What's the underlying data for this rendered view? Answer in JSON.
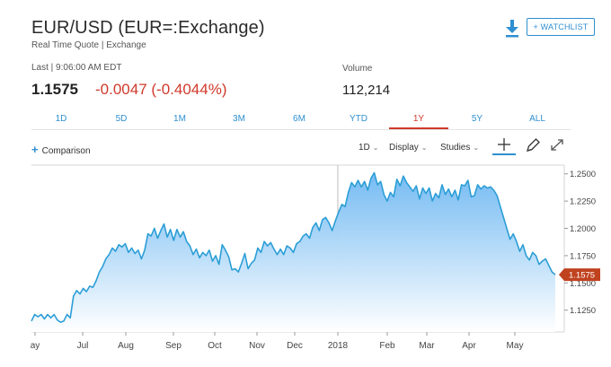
{
  "header": {
    "title": "EUR/USD (EUR=:Exchange)",
    "subtitle": "Real Time Quote | Exchange",
    "watchlist_label": "+ WATCHLIST",
    "download_icon": "download-icon"
  },
  "quote": {
    "last_label": "Last | 9:06:00 AM EDT",
    "price": "1.1575",
    "change": "-0.0047 (-0.4044%)",
    "volume_label": "Volume",
    "volume": "112,214",
    "change_color": "#d0392b"
  },
  "ranges": [
    {
      "label": "1D",
      "active": false
    },
    {
      "label": "5D",
      "active": false
    },
    {
      "label": "1M",
      "active": false
    },
    {
      "label": "3M",
      "active": false
    },
    {
      "label": "6M",
      "active": false
    },
    {
      "label": "YTD",
      "active": false
    },
    {
      "label": "1Y",
      "active": true
    },
    {
      "label": "5Y",
      "active": false
    },
    {
      "label": "ALL",
      "active": false
    }
  ],
  "toolbar": {
    "comparison_label": "Comparison",
    "interval_label": "1D",
    "display_label": "Display",
    "studies_label": "Studies",
    "icons": [
      "crosshair-icon",
      "draw-pencil-icon",
      "expand-icon"
    ]
  },
  "chart_data": {
    "type": "area",
    "x_tick_labels": [
      "ay",
      "Jul",
      "Aug",
      "Sep",
      "Oct",
      "Nov",
      "Dec",
      "2018",
      "Feb",
      "Mar",
      "Apr",
      "May"
    ],
    "y_tick_labels": [
      "1.2500",
      "1.2250",
      "1.2000",
      "1.1750",
      "1.1500",
      "1.1250"
    ],
    "ylim": [
      1.105,
      1.258
    ],
    "last_value_label": "1.1575",
    "series": [
      {
        "values": [
          1.115,
          1.121,
          1.119,
          1.121,
          1.117,
          1.121,
          1.118,
          1.121,
          1.116,
          1.114,
          1.115,
          1.121,
          1.118,
          1.138,
          1.143,
          1.14,
          1.145,
          1.142,
          1.147,
          1.146,
          1.152,
          1.16,
          1.165,
          1.172,
          1.176,
          1.182,
          1.179,
          1.185,
          1.183,
          1.186,
          1.178,
          1.182,
          1.177,
          1.18,
          1.172,
          1.18,
          1.195,
          1.193,
          1.2,
          1.191,
          1.198,
          1.204,
          1.192,
          1.199,
          1.189,
          1.199,
          1.192,
          1.197,
          1.188,
          1.184,
          1.176,
          1.181,
          1.173,
          1.178,
          1.175,
          1.18,
          1.17,
          1.175,
          1.167,
          1.185,
          1.18,
          1.174,
          1.162,
          1.163,
          1.16,
          1.168,
          1.177,
          1.163,
          1.168,
          1.171,
          1.182,
          1.178,
          1.188,
          1.184,
          1.187,
          1.181,
          1.176,
          1.181,
          1.176,
          1.184,
          1.182,
          1.178,
          1.186,
          1.188,
          1.193,
          1.195,
          1.191,
          1.201,
          1.205,
          1.198,
          1.208,
          1.21,
          1.205,
          1.198,
          1.207,
          1.215,
          1.222,
          1.22,
          1.233,
          1.242,
          1.238,
          1.244,
          1.238,
          1.243,
          1.235,
          1.246,
          1.251,
          1.24,
          1.243,
          1.231,
          1.225,
          1.233,
          1.229,
          1.245,
          1.239,
          1.248,
          1.242,
          1.238,
          1.234,
          1.239,
          1.227,
          1.237,
          1.232,
          1.237,
          1.225,
          1.232,
          1.228,
          1.24,
          1.231,
          1.236,
          1.229,
          1.235,
          1.226,
          1.24,
          1.239,
          1.244,
          1.229,
          1.23,
          1.24,
          1.236,
          1.239,
          1.237,
          1.238,
          1.235,
          1.23,
          1.22,
          1.21,
          1.2,
          1.19,
          1.195,
          1.188,
          1.179,
          1.185,
          1.175,
          1.171,
          1.178,
          1.175,
          1.167,
          1.17,
          1.172,
          1.166,
          1.16,
          1.1575
        ]
      }
    ],
    "grid": false,
    "colors": {
      "line": "#2b9ed6",
      "fill_top": "#6fb8f2",
      "fill_bottom": "#ffffff",
      "last_label_bg": "#c0421f"
    }
  }
}
